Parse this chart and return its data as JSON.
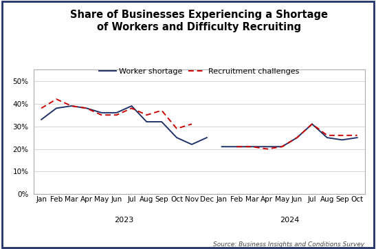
{
  "title": "Share of Businesses Experiencing a Shortage\nof Workers and Difficulty Recruiting",
  "source": "Source: Business Insights and Conditions Survey",
  "labels_2023": [
    "Jan",
    "Feb",
    "Mar",
    "Apr",
    "May",
    "Jun",
    "Jul",
    "Aug",
    "Sep",
    "Oct",
    "Nov",
    "Dec"
  ],
  "labels_2024": [
    "Jan",
    "Feb",
    "Mar",
    "Apr",
    "May",
    "Jun",
    "Jul",
    "Aug",
    "Sep",
    "Oct"
  ],
  "worker_shortage_2023": [
    33,
    38,
    39,
    38,
    36,
    36,
    39,
    32,
    32,
    25,
    22,
    25
  ],
  "worker_shortage_2024": [
    21,
    21,
    21,
    21,
    21,
    25,
    31,
    25,
    24,
    25
  ],
  "recruitment_2023": [
    38,
    42,
    39,
    38,
    35,
    35,
    38,
    35,
    37,
    29,
    31,
    null
  ],
  "recruitment_2024": [
    null,
    21,
    21,
    20,
    21,
    25,
    31,
    26,
    26,
    26
  ],
  "ylim": [
    0,
    55
  ],
  "yticks": [
    0,
    10,
    20,
    30,
    40,
    50
  ],
  "line_color_shortage": "#1f3269",
  "line_color_recruitment": "#cc0000",
  "border_color": "#1f3269",
  "legend_shortage": "Worker shortage",
  "legend_recruitment": "Recruitment challenges",
  "title_fontsize": 10.5,
  "tick_fontsize": 7.5,
  "source_fontsize": 6.5,
  "legend_fontsize": 8
}
